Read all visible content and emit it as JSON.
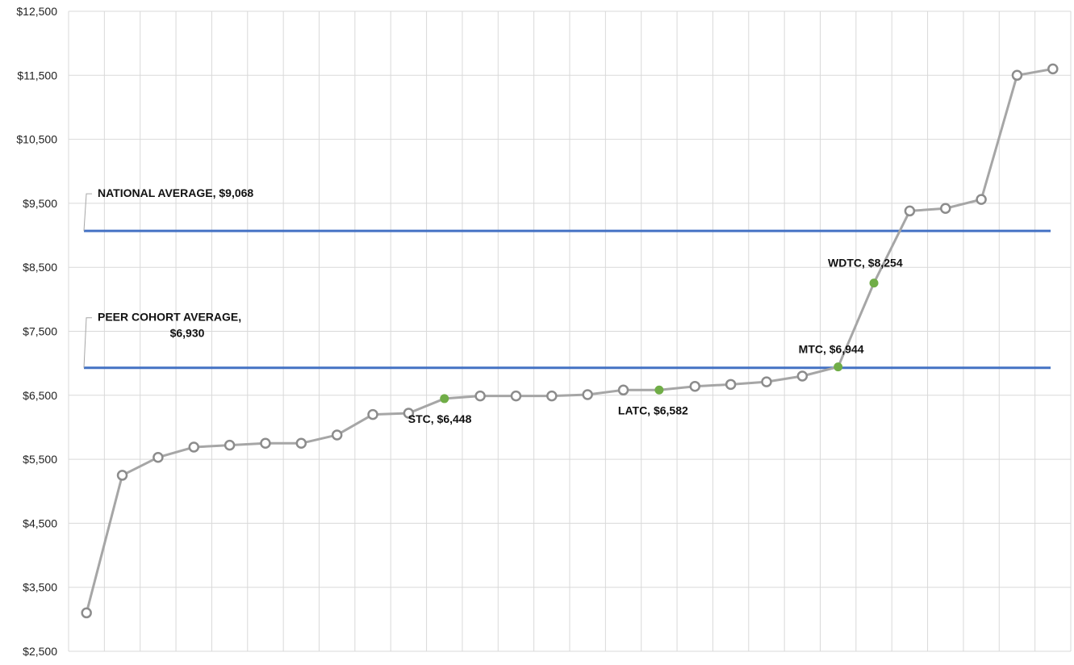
{
  "chart_data": {
    "type": "line",
    "title": "",
    "xlabel": "",
    "ylabel": "",
    "ylim": [
      2500,
      12500
    ],
    "y_ticks": [
      "$2,500",
      "$3,500",
      "$4,500",
      "$5,500",
      "$6,500",
      "$7,500",
      "$8,500",
      "$9,500",
      "$10,500",
      "$11,500",
      "$12,500"
    ],
    "grid": true,
    "series": [
      {
        "values": [
          3100,
          5250,
          5530,
          5690,
          5720,
          5750,
          5750,
          5880,
          6200,
          6220,
          6448,
          6490,
          6490,
          6490,
          6510,
          6582,
          6582,
          6640,
          6670,
          6710,
          6800,
          6944,
          8254,
          9380,
          9420,
          9560,
          11500,
          11600
        ],
        "color": "#a6a6a6",
        "highlight_color": "#70ad47",
        "highlight_points": [
          {
            "index": 10,
            "label": "STC,  $6,448"
          },
          {
            "index": 16,
            "label": "LATC,  $6,582"
          },
          {
            "index": 21,
            "label": "MTC,  $6,944"
          },
          {
            "index": 22,
            "label": "WDTC,  $8,254"
          }
        ]
      }
    ],
    "reference_lines": [
      {
        "value": 9068,
        "label_lines": [
          "NATIONAL  AVERAGE,  $9,068"
        ],
        "color": "#4472c4"
      },
      {
        "value": 6930,
        "label_lines": [
          "PEER COHORT  AVERAGE,",
          "$6,930"
        ],
        "color": "#4472c4"
      }
    ]
  }
}
